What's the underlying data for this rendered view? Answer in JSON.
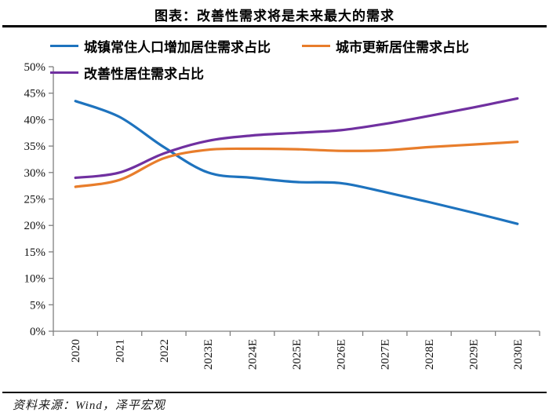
{
  "page": {
    "title": "图表：改善性需求将是未来最大的需求",
    "source": "资料来源：Wind，泽平宏观"
  },
  "chart_data": {
    "type": "line",
    "title": "图表：改善性需求将是未来最大的需求",
    "categories": [
      "2020",
      "2021",
      "2022",
      "2023E",
      "2024E",
      "2025E",
      "2026E",
      "2027E",
      "2028E",
      "2029E",
      "2030E"
    ],
    "series": [
      {
        "name": "城镇常住人口增加居住需求占比",
        "color": "#1E73BE",
        "values": [
          43.5,
          40.5,
          34.8,
          30.0,
          29.0,
          28.2,
          28.0,
          26.3,
          24.4,
          22.4,
          20.3
        ]
      },
      {
        "name": "城市更新居住需求占比",
        "color": "#E87D2B",
        "values": [
          27.3,
          28.6,
          32.7,
          34.3,
          34.5,
          34.4,
          34.1,
          34.2,
          34.8,
          35.3,
          35.8
        ]
      },
      {
        "name": "改善性居住需求占比",
        "color": "#7030A0",
        "values": [
          29.0,
          30.0,
          33.6,
          36.0,
          37.0,
          37.5,
          38.0,
          39.2,
          40.7,
          42.3,
          44.0
        ]
      }
    ],
    "ylim": [
      0,
      50
    ],
    "ytick_step": 5,
    "ytick_labels": [
      "0%",
      "5%",
      "10%",
      "15%",
      "20%",
      "25%",
      "30%",
      "35%",
      "40%",
      "45%",
      "50%"
    ],
    "grid": false,
    "legend_position": "top-left",
    "axis_color": "#7f7f7f",
    "xlabel": "",
    "ylabel": "",
    "source": "资料来源：Wind，泽平宏观"
  }
}
